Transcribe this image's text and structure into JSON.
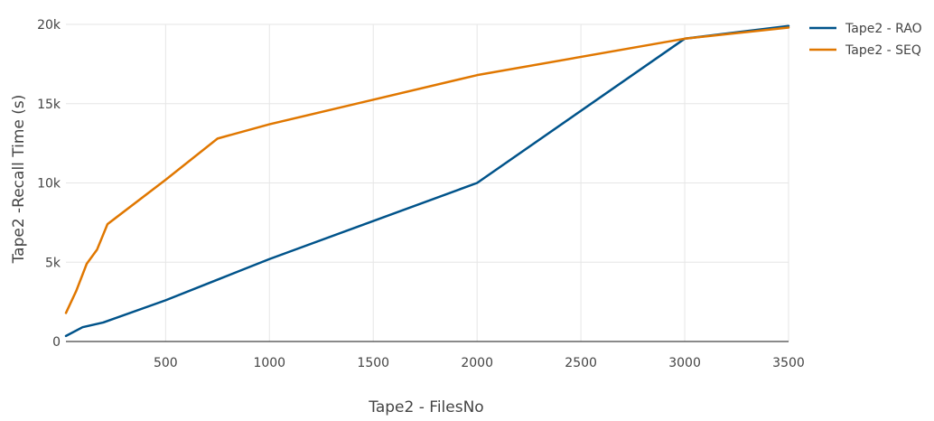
{
  "chart_data": {
    "type": "line",
    "title": "",
    "xlabel": "Tape2 - FilesNo",
    "ylabel": "Tape2 -Recall Time (s)",
    "xlim": [
      20,
      3500
    ],
    "ylim": [
      0,
      20000
    ],
    "x_ticks": [
      500,
      1000,
      1500,
      2000,
      2500,
      3000,
      3500
    ],
    "x_tick_labels": [
      "500",
      "1000",
      "1500",
      "2000",
      "2500",
      "3000",
      "3500"
    ],
    "y_ticks": [
      0,
      5000,
      10000,
      15000,
      20000
    ],
    "y_tick_labels": [
      "0",
      "5k",
      "10k",
      "15k",
      "20k"
    ],
    "grid": true,
    "legend": "top-right",
    "series": [
      {
        "name": "Tape2 - RAO",
        "color": "#00538a",
        "x": [
          20,
          100,
          200,
          500,
          750,
          1000,
          2000,
          3000,
          3500
        ],
        "y": [
          350,
          900,
          1200,
          2600,
          3900,
          5200,
          10000,
          19100,
          19900
        ]
      },
      {
        "name": "Tape2 - SEQ",
        "color": "#e07700",
        "x": [
          20,
          70,
          120,
          170,
          220,
          500,
          750,
          1000,
          2000,
          3000,
          3500
        ],
        "y": [
          1800,
          3200,
          4900,
          5800,
          7400,
          10200,
          12800,
          13700,
          16800,
          19100,
          19800
        ]
      }
    ]
  }
}
